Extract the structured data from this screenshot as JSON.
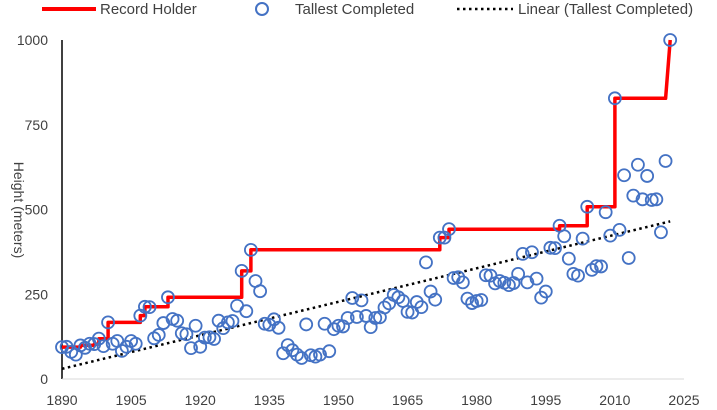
{
  "chart_data": {
    "type": "scatter",
    "title": "",
    "xlabel": "",
    "ylabel": "Height (meters)",
    "xlim": [
      1890,
      2025
    ],
    "ylim": [
      0,
      1000
    ],
    "x_ticks": [
      1890,
      1905,
      1920,
      1935,
      1950,
      1965,
      1980,
      1995,
      2010,
      2025
    ],
    "y_ticks": [
      0,
      250,
      500,
      750,
      1000
    ],
    "grid": false,
    "legend": "top",
    "series": [
      {
        "name": "Record Holder",
        "kind": "step-line",
        "color": "#ff0000",
        "points": [
          [
            1890,
            94
          ],
          [
            1894,
            94
          ],
          [
            1894,
            99
          ],
          [
            1897,
            99
          ],
          [
            1897,
            103
          ],
          [
            1898,
            103
          ],
          [
            1898,
            119
          ],
          [
            1899,
            119
          ],
          [
            1899,
            119
          ],
          [
            1900,
            119
          ],
          [
            1900,
            167
          ],
          [
            1907,
            167
          ],
          [
            1907,
            187
          ],
          [
            1908,
            187
          ],
          [
            1908,
            213
          ],
          [
            1913,
            213
          ],
          [
            1913,
            241
          ],
          [
            1928,
            241
          ],
          [
            1928,
            241
          ],
          [
            1929,
            241
          ],
          [
            1929,
            319
          ],
          [
            1931,
            319
          ],
          [
            1931,
            381
          ],
          [
            1972,
            381
          ],
          [
            1972,
            417
          ],
          [
            1973,
            417
          ],
          [
            1973,
            417
          ],
          [
            1974,
            417
          ],
          [
            1974,
            442
          ],
          [
            1998,
            442
          ],
          [
            1998,
            452
          ],
          [
            2004,
            452
          ],
          [
            2004,
            508
          ],
          [
            2010,
            508
          ],
          [
            2010,
            828
          ],
          [
            2021,
            828
          ],
          [
            2022,
            1000
          ]
        ]
      },
      {
        "name": "Tallest Completed",
        "kind": "markers",
        "color": "#4472c4",
        "points": [
          [
            1890,
            94
          ],
          [
            1891,
            95
          ],
          [
            1892,
            80
          ],
          [
            1893,
            72
          ],
          [
            1894,
            99
          ],
          [
            1895,
            92
          ],
          [
            1896,
            104
          ],
          [
            1897,
            103
          ],
          [
            1898,
            119
          ],
          [
            1899,
            97
          ],
          [
            1900,
            167
          ],
          [
            1901,
            104
          ],
          [
            1902,
            112
          ],
          [
            1903,
            83
          ],
          [
            1904,
            95
          ],
          [
            1905,
            112
          ],
          [
            1906,
            104
          ],
          [
            1907,
            187
          ],
          [
            1908,
            213
          ],
          [
            1909,
            212
          ],
          [
            1910,
            120
          ],
          [
            1911,
            130
          ],
          [
            1912,
            165
          ],
          [
            1913,
            241
          ],
          [
            1914,
            177
          ],
          [
            1915,
            172
          ],
          [
            1916,
            135
          ],
          [
            1917,
            132
          ],
          [
            1918,
            91
          ],
          [
            1919,
            157
          ],
          [
            1920,
            95
          ],
          [
            1921,
            122
          ],
          [
            1922,
            123
          ],
          [
            1923,
            118
          ],
          [
            1924,
            172
          ],
          [
            1925,
            150
          ],
          [
            1926,
            167
          ],
          [
            1927,
            171
          ],
          [
            1928,
            216
          ],
          [
            1929,
            319
          ],
          [
            1930,
            200
          ],
          [
            1931,
            381
          ],
          [
            1932,
            289
          ],
          [
            1933,
            259
          ],
          [
            1934,
            163
          ],
          [
            1935,
            160
          ],
          [
            1936,
            176
          ],
          [
            1937,
            151
          ],
          [
            1938,
            76
          ],
          [
            1939,
            100
          ],
          [
            1940,
            85
          ],
          [
            1941,
            72
          ],
          [
            1942,
            62
          ],
          [
            1943,
            161
          ],
          [
            1944,
            70
          ],
          [
            1945,
            66
          ],
          [
            1946,
            72
          ],
          [
            1947,
            163
          ],
          [
            1948,
            82
          ],
          [
            1949,
            147
          ],
          [
            1950,
            157
          ],
          [
            1951,
            155
          ],
          [
            1952,
            180
          ],
          [
            1953,
            239
          ],
          [
            1954,
            183
          ],
          [
            1955,
            232
          ],
          [
            1956,
            186
          ],
          [
            1957,
            153
          ],
          [
            1958,
            180
          ],
          [
            1959,
            182
          ],
          [
            1960,
            211
          ],
          [
            1961,
            223
          ],
          [
            1962,
            248
          ],
          [
            1963,
            241
          ],
          [
            1964,
            230
          ],
          [
            1965,
            198
          ],
          [
            1966,
            196
          ],
          [
            1967,
            227
          ],
          [
            1968,
            212
          ],
          [
            1969,
            344
          ],
          [
            1970,
            258
          ],
          [
            1971,
            234
          ],
          [
            1972,
            417
          ],
          [
            1973,
            417
          ],
          [
            1974,
            442
          ],
          [
            1975,
            298
          ],
          [
            1976,
            300
          ],
          [
            1977,
            285
          ],
          [
            1978,
            237
          ],
          [
            1979,
            224
          ],
          [
            1980,
            230
          ],
          [
            1981,
            233
          ],
          [
            1982,
            306
          ],
          [
            1983,
            305
          ],
          [
            1984,
            282
          ],
          [
            1985,
            289
          ],
          [
            1986,
            284
          ],
          [
            1987,
            277
          ],
          [
            1988,
            283
          ],
          [
            1989,
            310
          ],
          [
            1990,
            369
          ],
          [
            1991,
            285
          ],
          [
            1992,
            374
          ],
          [
            1993,
            296
          ],
          [
            1994,
            240
          ],
          [
            1995,
            258
          ],
          [
            1996,
            387
          ],
          [
            1997,
            386
          ],
          [
            1998,
            452
          ],
          [
            1999,
            421
          ],
          [
            2000,
            355
          ],
          [
            2001,
            310
          ],
          [
            2002,
            305
          ],
          [
            2003,
            414
          ],
          [
            2004,
            508
          ],
          [
            2005,
            322
          ],
          [
            2006,
            333
          ],
          [
            2007,
            332
          ],
          [
            2008,
            492
          ],
          [
            2009,
            423
          ],
          [
            2010,
            828
          ],
          [
            2011,
            440
          ],
          [
            2012,
            601
          ],
          [
            2013,
            357
          ],
          [
            2014,
            541
          ],
          [
            2015,
            632
          ],
          [
            2016,
            530
          ],
          [
            2017,
            599
          ],
          [
            2018,
            528
          ],
          [
            2019,
            530
          ],
          [
            2020,
            433
          ],
          [
            2021,
            643
          ],
          [
            2022,
            1000
          ]
        ]
      },
      {
        "name": "Linear (Tallest Completed)",
        "kind": "trendline",
        "color": "#000000",
        "points": [
          [
            1890,
            30
          ],
          [
            2022,
            465
          ]
        ]
      }
    ]
  }
}
